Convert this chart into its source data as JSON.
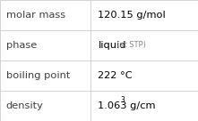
{
  "rows": [
    {
      "label": "molar mass",
      "value": "120.15 g/mol",
      "superscript": null,
      "extra": null
    },
    {
      "label": "phase",
      "value": "liquid",
      "superscript": null,
      "extra": "(at STP)"
    },
    {
      "label": "boiling point",
      "value": "222 °C",
      "superscript": null,
      "extra": null
    },
    {
      "label": "density",
      "value": "1.063 g/cm",
      "superscript": "3",
      "extra": null
    }
  ],
  "col_split": 0.455,
  "background_color": "#ffffff",
  "border_color": "#cccccc",
  "label_color": "#404040",
  "value_color": "#000000",
  "extra_color": "#888888",
  "label_fontsize": 8.2,
  "value_fontsize": 8.2,
  "extra_fontsize": 6.0,
  "sup_fontsize": 5.5
}
